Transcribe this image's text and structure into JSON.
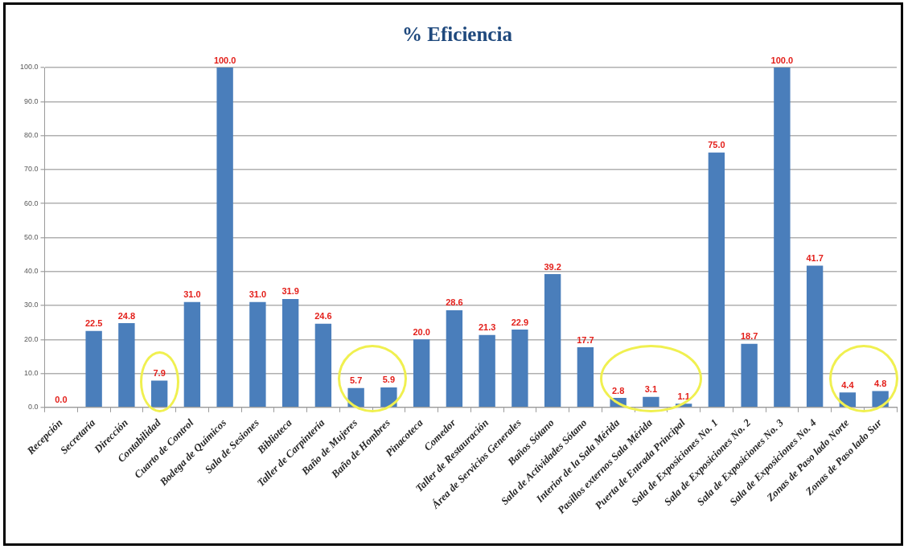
{
  "chart_data": {
    "type": "bar",
    "title": "% Eficiencia",
    "categories": [
      "Recepción",
      "Secretaría",
      "Dirección",
      "Contabilidad",
      "Cuarto de Control",
      "Bodega de Químicos",
      "Sala de Sesiones",
      "Biblioteca",
      "Taller de Carpintería",
      "Baño de Mujeres",
      "Baño de Hombres",
      "Pinacoteca",
      "Comedor",
      "Taller de Restauración",
      "Área de Servicios Generales",
      "Baños Sótano",
      "Sala de Actividades Sótano",
      "Interior de la Sala Mérida",
      "Pasillos externos Sala Mérida",
      "Puerta de Entrada Principal",
      "Sala de Exposiciones No. 1",
      "Sala de Exposiciones No. 2",
      "Sala de Exposiciones No. 3",
      "Sala de Exposiciones No. 4",
      "Zonas de Paso lado Norte",
      "Zonas de Paso lado Sur"
    ],
    "values": [
      0.0,
      22.5,
      24.8,
      7.9,
      31.0,
      100.0,
      31.0,
      31.9,
      24.6,
      5.7,
      5.9,
      20.0,
      28.6,
      21.3,
      22.9,
      39.2,
      17.7,
      2.8,
      3.1,
      1.1,
      75.0,
      18.7,
      100.0,
      41.7,
      4.4,
      4.8
    ],
    "value_labels": [
      "0.0",
      "22.5",
      "24.8",
      "7.9",
      "31.0",
      "100.0",
      "31.0",
      "31.9",
      "24.6",
      "5.7",
      "5.9",
      "20.0",
      "28.6",
      "21.3",
      "22.9",
      "39.2",
      "17.7",
      "2.8",
      "3.1",
      "1.1",
      "75.0",
      "18.7",
      "100.0",
      "41.7",
      "4.4",
      "4.8"
    ],
    "color": "#4a7ebb",
    "ylim": [
      0,
      100
    ],
    "yticks": [
      {
        "value": 0,
        "label": "0.0"
      },
      {
        "value": 10,
        "label": "10.0"
      },
      {
        "value": 20,
        "label": "20.0"
      },
      {
        "value": 30,
        "label": "30.0"
      },
      {
        "value": 40,
        "label": "40.0"
      },
      {
        "value": 50,
        "label": "50.0"
      },
      {
        "value": 60,
        "label": "60.0"
      },
      {
        "value": 70,
        "label": "70.0"
      },
      {
        "value": 80,
        "label": "80.0"
      },
      {
        "value": 90,
        "label": "90.0"
      },
      {
        "value": 100,
        "label": "100.0"
      }
    ],
    "grid": "y"
  }
}
